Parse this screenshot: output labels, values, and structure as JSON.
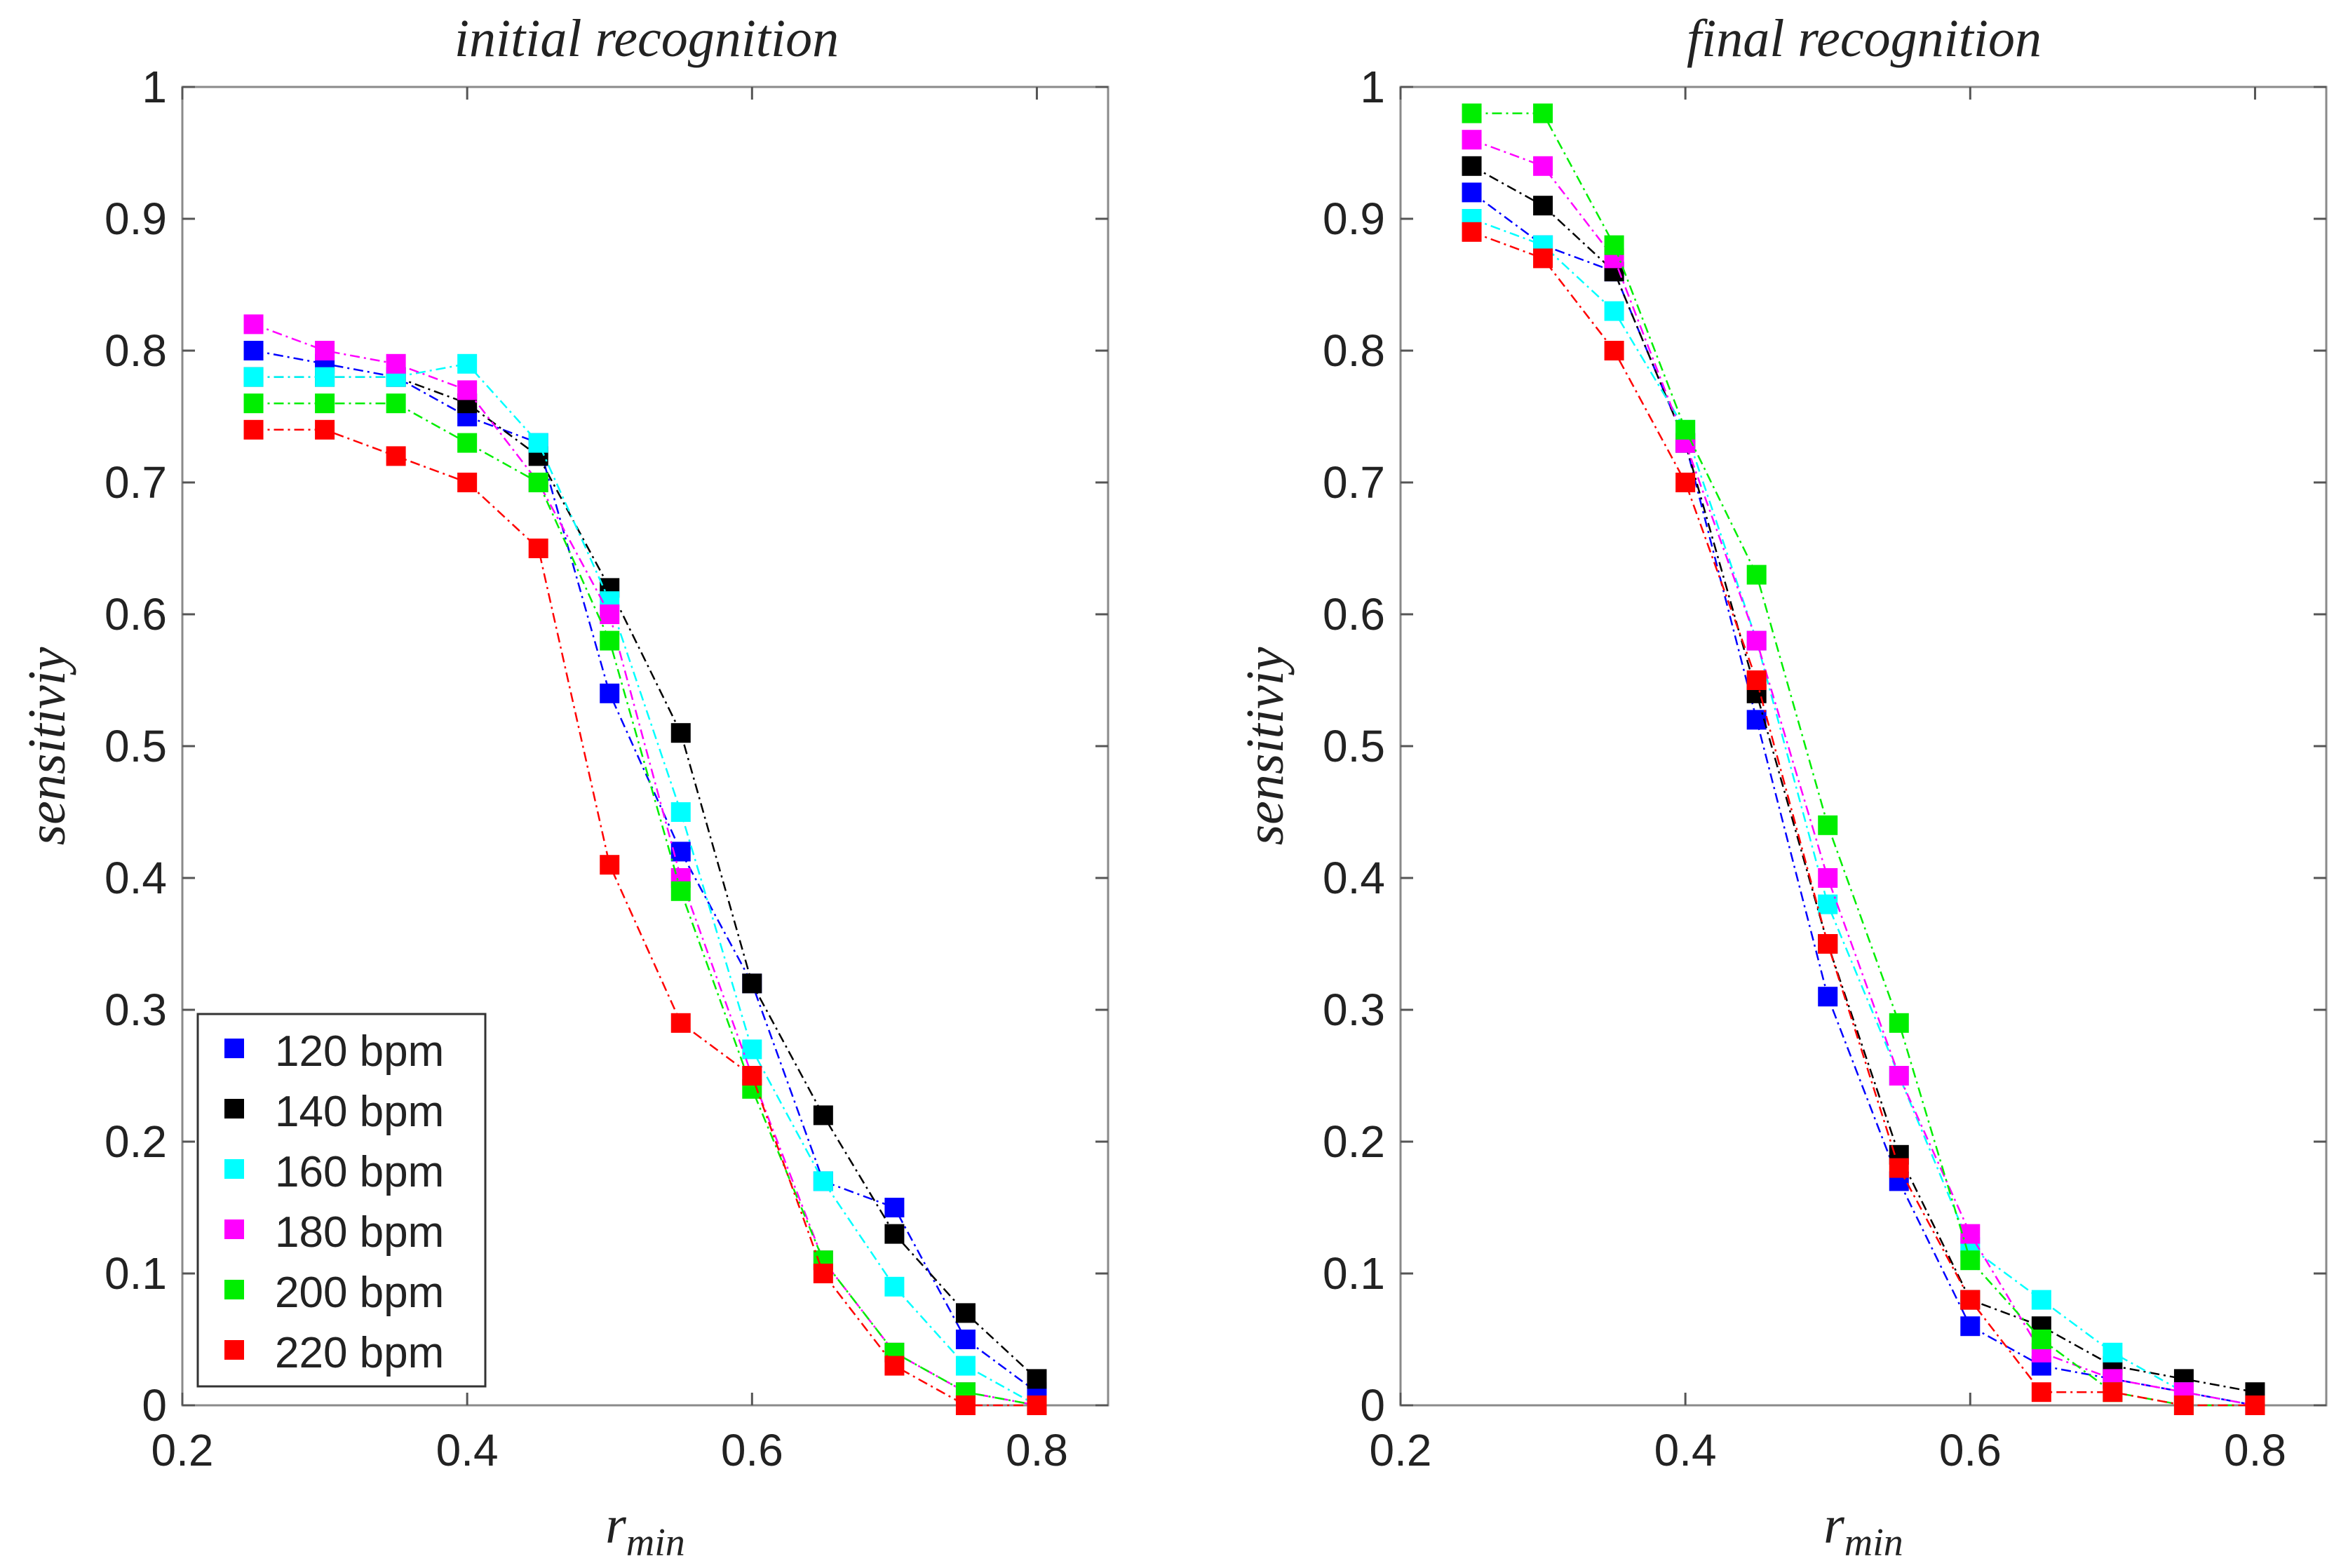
{
  "chart_data": [
    {
      "type": "scatter",
      "title": "initial recognition",
      "xlabel": "r",
      "xlabel_sub": "min",
      "ylabel": "sensitiviy",
      "xlim": [
        0.2,
        0.85
      ],
      "ylim": [
        0,
        1
      ],
      "xticks": [
        0.2,
        0.4,
        0.6,
        0.8
      ],
      "xtick_labels": [
        "0.2",
        "0.4",
        "0.6",
        "0.8"
      ],
      "yticks": [
        0,
        0.1,
        0.2,
        0.3,
        0.4,
        0.5,
        0.6,
        0.7,
        0.8,
        0.9,
        1
      ],
      "ytick_labels": [
        "0",
        "0.1",
        "0.2",
        "0.3",
        "0.4",
        "0.5",
        "0.6",
        "0.7",
        "0.8",
        "0.9",
        "1"
      ],
      "grid": false,
      "legend": {
        "position": "bottom-left"
      },
      "x": [
        0.25,
        0.3,
        0.35,
        0.4,
        0.45,
        0.5,
        0.55,
        0.6,
        0.65,
        0.7,
        0.75,
        0.8
      ],
      "series": [
        {
          "name": "120 bpm",
          "color": "#0000ff",
          "values": [
            0.8,
            0.79,
            0.78,
            0.75,
            0.73,
            0.54,
            0.42,
            0.32,
            0.17,
            0.15,
            0.05,
            0.01
          ]
        },
        {
          "name": "140 bpm",
          "color": "#000000",
          "values": [
            0.78,
            0.78,
            0.78,
            0.76,
            0.72,
            0.62,
            0.51,
            0.32,
            0.22,
            0.13,
            0.07,
            0.02
          ]
        },
        {
          "name": "160 bpm",
          "color": "#00ffff",
          "values": [
            0.78,
            0.78,
            0.78,
            0.79,
            0.73,
            0.61,
            0.45,
            0.27,
            0.17,
            0.09,
            0.03,
            0.0
          ]
        },
        {
          "name": "180 bpm",
          "color": "#ff00ff",
          "values": [
            0.82,
            0.8,
            0.79,
            0.77,
            0.7,
            0.6,
            0.4,
            0.25,
            0.11,
            0.04,
            0.01,
            0.0
          ]
        },
        {
          "name": "200 bpm",
          "color": "#00ee00",
          "values": [
            0.76,
            0.76,
            0.76,
            0.73,
            0.7,
            0.58,
            0.39,
            0.24,
            0.11,
            0.04,
            0.01,
            0.0
          ]
        },
        {
          "name": "220 bpm",
          "color": "#ff0000",
          "values": [
            0.74,
            0.74,
            0.72,
            0.7,
            0.65,
            0.41,
            0.29,
            0.25,
            0.1,
            0.03,
            0.0,
            0.0
          ]
        }
      ]
    },
    {
      "type": "scatter",
      "title": "final recognition",
      "xlabel": "r",
      "xlabel_sub": "min",
      "ylabel": "sensitiviy",
      "xlim": [
        0.2,
        0.85
      ],
      "ylim": [
        0,
        1
      ],
      "xticks": [
        0.2,
        0.4,
        0.6,
        0.8
      ],
      "xtick_labels": [
        "0.2",
        "0.4",
        "0.6",
        "0.8"
      ],
      "yticks": [
        0,
        0.1,
        0.2,
        0.3,
        0.4,
        0.5,
        0.6,
        0.7,
        0.8,
        0.9,
        1
      ],
      "ytick_labels": [
        "0",
        "0.1",
        "0.2",
        "0.3",
        "0.4",
        "0.5",
        "0.6",
        "0.7",
        "0.8",
        "0.9",
        "1"
      ],
      "grid": false,
      "x": [
        0.25,
        0.3,
        0.35,
        0.4,
        0.45,
        0.5,
        0.55,
        0.6,
        0.65,
        0.7,
        0.75,
        0.8
      ],
      "series": [
        {
          "name": "120 bpm",
          "color": "#0000ff",
          "values": [
            0.92,
            0.88,
            0.86,
            0.73,
            0.52,
            0.31,
            0.17,
            0.06,
            0.03,
            0.02,
            0.01,
            0.0
          ]
        },
        {
          "name": "140 bpm",
          "color": "#000000",
          "values": [
            0.94,
            0.91,
            0.86,
            0.73,
            0.54,
            0.35,
            0.19,
            0.08,
            0.06,
            0.03,
            0.02,
            0.01
          ]
        },
        {
          "name": "160 bpm",
          "color": "#00ffff",
          "values": [
            0.9,
            0.88,
            0.83,
            0.74,
            0.58,
            0.38,
            0.25,
            0.12,
            0.08,
            0.04,
            0.01,
            0.0
          ]
        },
        {
          "name": "180 bpm",
          "color": "#ff00ff",
          "values": [
            0.96,
            0.94,
            0.87,
            0.73,
            0.58,
            0.4,
            0.25,
            0.13,
            0.04,
            0.02,
            0.01,
            0.0
          ]
        },
        {
          "name": "200 bpm",
          "color": "#00ee00",
          "values": [
            0.98,
            0.98,
            0.88,
            0.74,
            0.63,
            0.44,
            0.29,
            0.11,
            0.05,
            0.01,
            0.0,
            0.0
          ]
        },
        {
          "name": "220 bpm",
          "color": "#ff0000",
          "values": [
            0.89,
            0.87,
            0.8,
            0.7,
            0.55,
            0.35,
            0.18,
            0.08,
            0.01,
            0.01,
            0.0,
            0.0
          ]
        }
      ]
    }
  ]
}
